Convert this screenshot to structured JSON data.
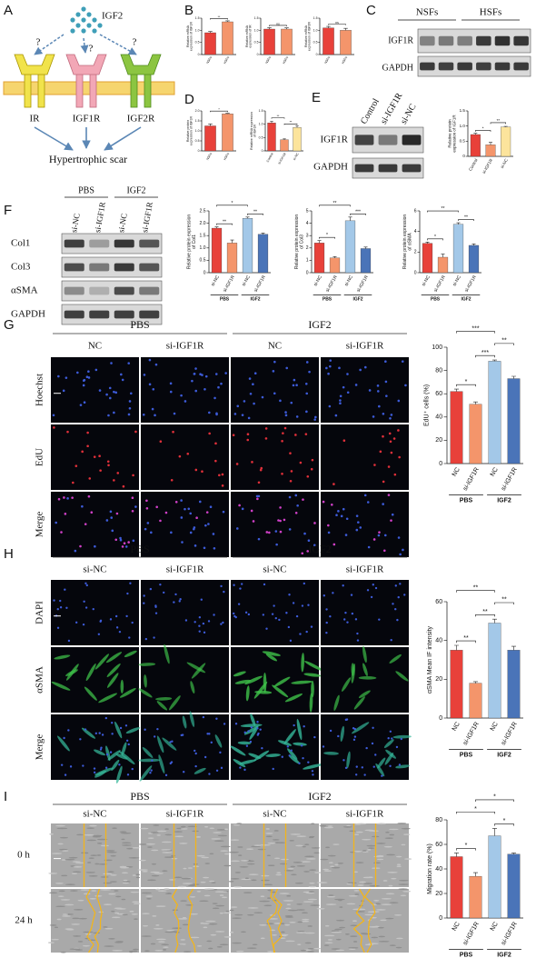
{
  "panel_labels": [
    "A",
    "B",
    "C",
    "D",
    "E",
    "F",
    "G",
    "H",
    "I"
  ],
  "diagram": {
    "ligand": "IGF2",
    "unknowns": [
      "?",
      "?",
      "?"
    ],
    "receptors": [
      "IR",
      "IGF1R",
      "IGF2R"
    ],
    "outcome": "Hypertrophic scar"
  },
  "blot_c": {
    "groups": [
      "NSFs",
      "HSFs"
    ],
    "rows": [
      "IGF1R",
      "GAPDH"
    ]
  },
  "blot_e": {
    "lanes": [
      "Control",
      "si-IGF1R",
      "si-NC"
    ],
    "rows": [
      "IGF1R",
      "GAPDH"
    ]
  },
  "blot_f": {
    "groups": [
      "PBS",
      "IGF2"
    ],
    "lanes": [
      "si-NC",
      "si-IGF1R",
      "si-NC",
      "si-IGF1R"
    ],
    "rows": [
      "Col1",
      "Col3",
      "αSMA",
      "GAPDH"
    ]
  },
  "images_g": {
    "groups": [
      "PBS",
      "IGF2"
    ],
    "columns": [
      "NC",
      "si-IGF1R",
      "NC",
      "si-IGF1R"
    ],
    "rows": [
      "Hoechst",
      "EdU",
      "Merge"
    ]
  },
  "images_h": {
    "groups": [
      "PBS",
      "IGF2"
    ],
    "columns": [
      "si-NC",
      "si-IGF1R",
      "si-NC",
      "si-IGF1R"
    ],
    "rows": [
      "DAPI",
      "αSMA",
      "Merge"
    ]
  },
  "images_i": {
    "groups": [
      "PBS",
      "IGF2"
    ],
    "columns": [
      "si-NC",
      "si-IGF1R",
      "si-NC",
      "si-IGF1R"
    ],
    "rows": [
      "0 h",
      "24 h"
    ]
  },
  "chart_data": [
    {
      "type": "bar",
      "ylabel": "Relative mRNA expression of IGF1R",
      "categories": [
        "NSFs",
        "HSFs"
      ],
      "values": [
        0.9,
        1.35
      ],
      "errors": [
        0.05,
        0.04
      ],
      "colors": [
        "#e8413a",
        "#f4956b"
      ],
      "ylim": [
        0,
        1.5
      ],
      "yticks": [
        0,
        0.5,
        {
          "value": 1,
          "label": "1.0"
        },
        1.5
      ],
      "significance": [
        {
          "from": 0,
          "to": 1,
          "label": "**"
        }
      ]
    },
    {
      "type": "bar",
      "ylabel": "Relative mRNA expression of IR",
      "categories": [
        "NSFs",
        "HSFs"
      ],
      "values": [
        1.05,
        1.05
      ],
      "errors": [
        0.06,
        0.05
      ],
      "colors": [
        "#e8413a",
        "#f4956b"
      ],
      "ylim": [
        0,
        1.5
      ],
      "yticks": [
        0,
        0.5,
        {
          "value": 1,
          "label": "1.0"
        },
        1.5
      ],
      "significance": [
        {
          "from": 0,
          "to": 1,
          "label": "ns"
        }
      ]
    },
    {
      "type": "bar",
      "ylabel": "Relative mRNA expression of IGF2R",
      "categories": [
        "NSFs",
        "HSFs"
      ],
      "values": [
        1.1,
        1.0
      ],
      "errors": [
        0.06,
        0.08
      ],
      "colors": [
        "#e8413a",
        "#f4956b"
      ],
      "ylim": [
        0,
        1.5
      ],
      "yticks": [
        0,
        0.5,
        {
          "value": 1,
          "label": "1.0"
        },
        1.5
      ],
      "significance": [
        {
          "from": 0,
          "to": 1,
          "label": "ns"
        }
      ]
    },
    {
      "type": "bar",
      "ylabel": "Relative protein expression of IGF1R",
      "categories": [
        "NSFs",
        "HSFs"
      ],
      "values": [
        1.25,
        1.85
      ],
      "errors": [
        0.1,
        0.03
      ],
      "colors": [
        "#e8413a",
        "#f4956b"
      ],
      "ylim": [
        0,
        2
      ],
      "yticks": [
        0,
        0.5,
        {
          "value": 1,
          "label": "1.0"
        },
        1.5,
        {
          "value": 2,
          "label": "2.0"
        }
      ],
      "significance": [
        {
          "from": 0,
          "to": 1,
          "label": "*"
        }
      ]
    },
    {
      "type": "bar",
      "ylabel": "Relative mRNA expression of IGF1R",
      "categories": [
        "Control",
        "si-IGF1R",
        "si-NC"
      ],
      "values": [
        1.05,
        0.42,
        0.88
      ],
      "errors": [
        0.05,
        0.03,
        0.05
      ],
      "colors": [
        "#e8413a",
        "#f4956b",
        "#fce49c"
      ],
      "ylim": [
        0,
        1.5
      ],
      "yticks": [
        0,
        0.5,
        {
          "value": 1,
          "label": "1.0"
        },
        1.5
      ],
      "significance": [
        {
          "from": 1,
          "to": 2,
          "label": "**"
        },
        {
          "from": 0,
          "to": 1,
          "label": "**"
        }
      ]
    },
    {
      "type": "bar",
      "ylabel": "Relative protein expression of IGF1R",
      "categories": [
        "Control",
        "si-IGF1R",
        "si-NC"
      ],
      "values": [
        0.72,
        0.38,
        0.97
      ],
      "errors": [
        0.04,
        0.08,
        0.02
      ],
      "colors": [
        "#e8413a",
        "#f4956b",
        "#fce49c"
      ],
      "ylim": [
        0,
        1.5
      ],
      "yticks": [
        0,
        0.5,
        {
          "value": 1,
          "label": "1.0"
        },
        1.5
      ],
      "significance": [
        {
          "from": 0,
          "to": 1,
          "label": "*"
        },
        {
          "from": 1,
          "to": 2,
          "label": "**"
        }
      ]
    },
    {
      "type": "bar",
      "ylabel": "Relative protein expression of Col1",
      "categories": [
        "si-NC",
        "si-IGF1R",
        "si-NC",
        "si-IGF1R"
      ],
      "groups": [
        "PBS",
        "IGF2"
      ],
      "values": [
        1.8,
        1.2,
        2.2,
        1.55
      ],
      "errors": [
        0.05,
        0.12,
        0.05,
        0.05
      ],
      "colors": [
        "#e8413a",
        "#f4956b",
        "#a3c8e8",
        "#4a74b8"
      ],
      "ylim": [
        0,
        2.5
      ],
      "yticks": [
        0,
        0.5,
        {
          "value": 1,
          "label": "1.0"
        },
        1.5,
        {
          "value": 2,
          "label": "2.0"
        },
        2.5
      ],
      "significance": [
        {
          "from": 0,
          "to": 1,
          "label": "**"
        },
        {
          "from": 2,
          "to": 3,
          "label": "**"
        },
        {
          "from": 0,
          "to": 2,
          "label": "*"
        }
      ]
    },
    {
      "type": "bar",
      "ylabel": "Relative protein expression of Col3",
      "categories": [
        "si-NC",
        "si-IGF1R",
        "si-NC",
        "si-IGF1R"
      ],
      "groups": [
        "PBS",
        "IGF2"
      ],
      "values": [
        2.4,
        1.2,
        4.2,
        1.95
      ],
      "errors": [
        0.2,
        0.1,
        0.3,
        0.12
      ],
      "colors": [
        "#e8413a",
        "#f4956b",
        "#a3c8e8",
        "#4a74b8"
      ],
      "ylim": [
        0,
        5
      ],
      "yticks": [
        0,
        1,
        2,
        3,
        4,
        5
      ],
      "significance": [
        {
          "from": 0,
          "to": 1,
          "label": "*"
        },
        {
          "from": 2,
          "to": 3,
          "label": "***"
        },
        {
          "from": 0,
          "to": 2,
          "label": "**"
        }
      ]
    },
    {
      "type": "bar",
      "ylabel": "Relative protein expression of αSMA",
      "categories": [
        "si-NC",
        "si-IGF1R",
        "si-NC",
        "si-IGF1R"
      ],
      "groups": [
        "PBS",
        "IGF2"
      ],
      "values": [
        2.85,
        1.5,
        4.7,
        2.65
      ],
      "errors": [
        0.12,
        0.3,
        0.15,
        0.15
      ],
      "colors": [
        "#e8413a",
        "#f4956b",
        "#a3c8e8",
        "#4a74b8"
      ],
      "ylim": [
        0,
        6
      ],
      "yticks": [
        0,
        2,
        4,
        6
      ],
      "significance": [
        {
          "from": 0,
          "to": 1,
          "label": "*"
        },
        {
          "from": 2,
          "to": 3,
          "label": "**"
        },
        {
          "from": 0,
          "to": 2,
          "label": "**"
        }
      ]
    },
    {
      "type": "bar",
      "ylabel": "EdU⁺ cells (%)",
      "categories": [
        "NC",
        "si-IGF1R",
        "NC",
        "si-IGF1R"
      ],
      "groups": [
        "PBS",
        "IGF2"
      ],
      "values": [
        62,
        51,
        88,
        73
      ],
      "errors": [
        2,
        2,
        1,
        2
      ],
      "colors": [
        "#e8413a",
        "#f4956b",
        "#a3c8e8",
        "#4a74b8"
      ],
      "ylim": [
        0,
        100
      ],
      "yticks": [
        0,
        20,
        40,
        60,
        80,
        100
      ],
      "significance": [
        {
          "from": 0,
          "to": 1,
          "label": "*"
        },
        {
          "from": 1,
          "to": 2,
          "label": "***"
        },
        {
          "from": 2,
          "to": 3,
          "label": "**"
        },
        {
          "from": 0,
          "to": 2,
          "label": "***"
        }
      ]
    },
    {
      "type": "bar",
      "ylabel": "αSMA Mean IF intensity",
      "categories": [
        "NC",
        "si-IGF1R",
        "NC",
        "si-IGF1R"
      ],
      "groups": [
        "PBS",
        "IGF2"
      ],
      "values": [
        35,
        18,
        49,
        35
      ],
      "errors": [
        2.5,
        0.8,
        2,
        2
      ],
      "colors": [
        "#e8413a",
        "#f4956b",
        "#a3c8e8",
        "#4a74b8"
      ],
      "ylim": [
        0,
        60
      ],
      "yticks": [
        0,
        20,
        40,
        60
      ],
      "significance": [
        {
          "from": 0,
          "to": 1,
          "label": "**"
        },
        {
          "from": 1,
          "to": 2,
          "label": "**"
        },
        {
          "from": 2,
          "to": 3,
          "label": "**"
        },
        {
          "from": 0,
          "to": 2,
          "label": "**"
        }
      ]
    },
    {
      "type": "bar",
      "ylabel": "Migration rate (%)",
      "categories": [
        "NC",
        "si-IGF1R",
        "NC",
        "si-IGF1R"
      ],
      "groups": [
        "PBS",
        "IGF2"
      ],
      "values": [
        50,
        34,
        67,
        52
      ],
      "errors": [
        3,
        3,
        6,
        1
      ],
      "colors": [
        "#e8413a",
        "#f4956b",
        "#a3c8e8",
        "#4a74b8"
      ],
      "ylim": [
        0,
        80
      ],
      "yticks": [
        0,
        20,
        40,
        60,
        80
      ],
      "significance": [
        {
          "from": 0,
          "to": 1,
          "label": "*"
        },
        {
          "from": 2,
          "to": 3,
          "label": "*"
        },
        {
          "from": 0,
          "to": 2,
          "label": "*"
        },
        {
          "from": 1,
          "to": 3,
          "label": "*"
        }
      ]
    }
  ]
}
